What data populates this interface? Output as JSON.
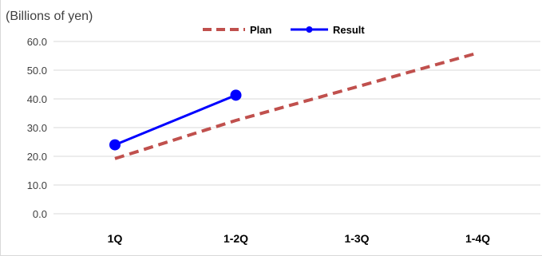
{
  "chart_data": {
    "type": "line",
    "ylabel": "(Billions of yen)",
    "categories": [
      "1Q",
      "1-2Q",
      "1-3Q",
      "1-4Q"
    ],
    "ylim": [
      0,
      60
    ],
    "yticks": [
      "0.0",
      "10.0",
      "20.0",
      "30.0",
      "40.0",
      "50.0",
      "60.0"
    ],
    "grid": true,
    "legend_position": "top-center",
    "series": [
      {
        "name": "Plan",
        "values": [
          19.2,
          32.5,
          44.2,
          56.0
        ],
        "color": "#c0504d",
        "style": "dashed",
        "markers": false
      },
      {
        "name": "Result",
        "values": [
          24.0,
          41.3,
          null,
          null
        ],
        "color": "#0000ff",
        "style": "solid",
        "markers": true
      }
    ]
  }
}
